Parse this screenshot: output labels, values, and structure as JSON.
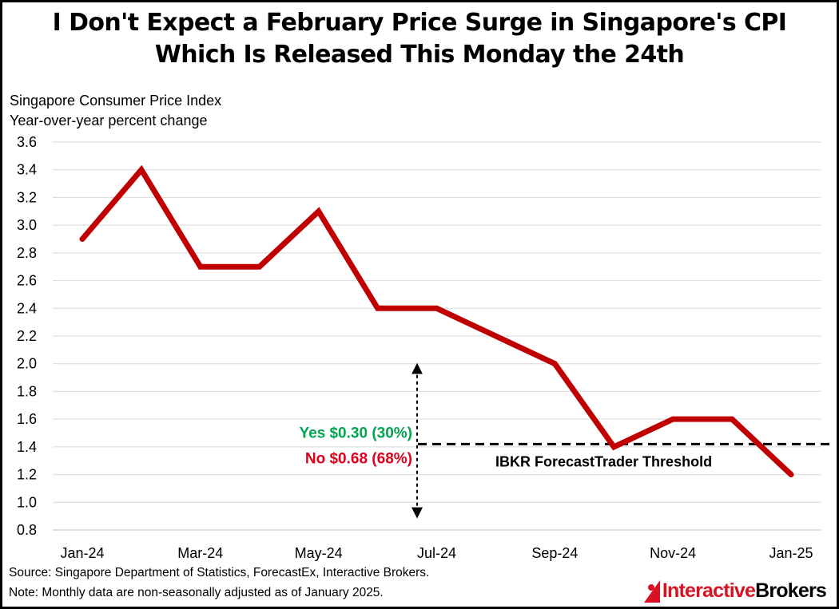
{
  "title": {
    "line1": "I Don't Expect a February Price Surge in Singapore's CPI",
    "line2": "Which Is Released This Monday the 24th"
  },
  "chart_data": {
    "type": "line",
    "ylabel_line1": "Singapore Consumer Price Index",
    "ylabel_line2": "Year-over-year percent change",
    "x": [
      "Jan-24",
      "Feb-24",
      "Mar-24",
      "Apr-24",
      "May-24",
      "Jun-24",
      "Jul-24",
      "Aug-24",
      "Sep-24",
      "Oct-24",
      "Nov-24",
      "Dec-24",
      "Jan-25"
    ],
    "x_tick_labels": [
      "Jan-24",
      "",
      "Mar-24",
      "",
      "May-24",
      "",
      "Jul-24",
      "",
      "Sep-24",
      "",
      "Nov-24",
      "",
      "Jan-25"
    ],
    "series": [
      {
        "name": "Singapore CPI YoY",
        "color": "#c00000",
        "values": [
          2.9,
          3.4,
          2.7,
          2.7,
          3.1,
          2.4,
          2.4,
          2.2,
          2.0,
          1.4,
          1.6,
          1.6,
          1.2
        ]
      }
    ],
    "ylim": [
      0.8,
      3.6
    ],
    "yticks": [
      "0.8",
      "1.0",
      "1.2",
      "1.4",
      "1.6",
      "1.8",
      "2.0",
      "2.2",
      "2.4",
      "2.6",
      "2.8",
      "3.0",
      "3.2",
      "3.4",
      "3.6"
    ],
    "grid": true,
    "threshold": {
      "value": 1.42,
      "label": "IBKR ForecastTrader Threshold",
      "color": "#000000"
    },
    "annotations": {
      "yes": {
        "text": "Yes $0.30 (30%)",
        "color": "#00a550"
      },
      "no": {
        "text": "No $0.68 (68%)",
        "color": "#e0001b"
      },
      "arrow_range": [
        0.9,
        2.0
      ]
    }
  },
  "footer": {
    "source": "Source: Singapore Department of Statistics, ForecastEx, Interactive Brokers.",
    "note": "Note: Monthly data are non-seasonally adjusted as of January 2025."
  },
  "logo": {
    "part1": "Interactive",
    "part2": "Brokers",
    "icon": "ib-logo-icon"
  }
}
